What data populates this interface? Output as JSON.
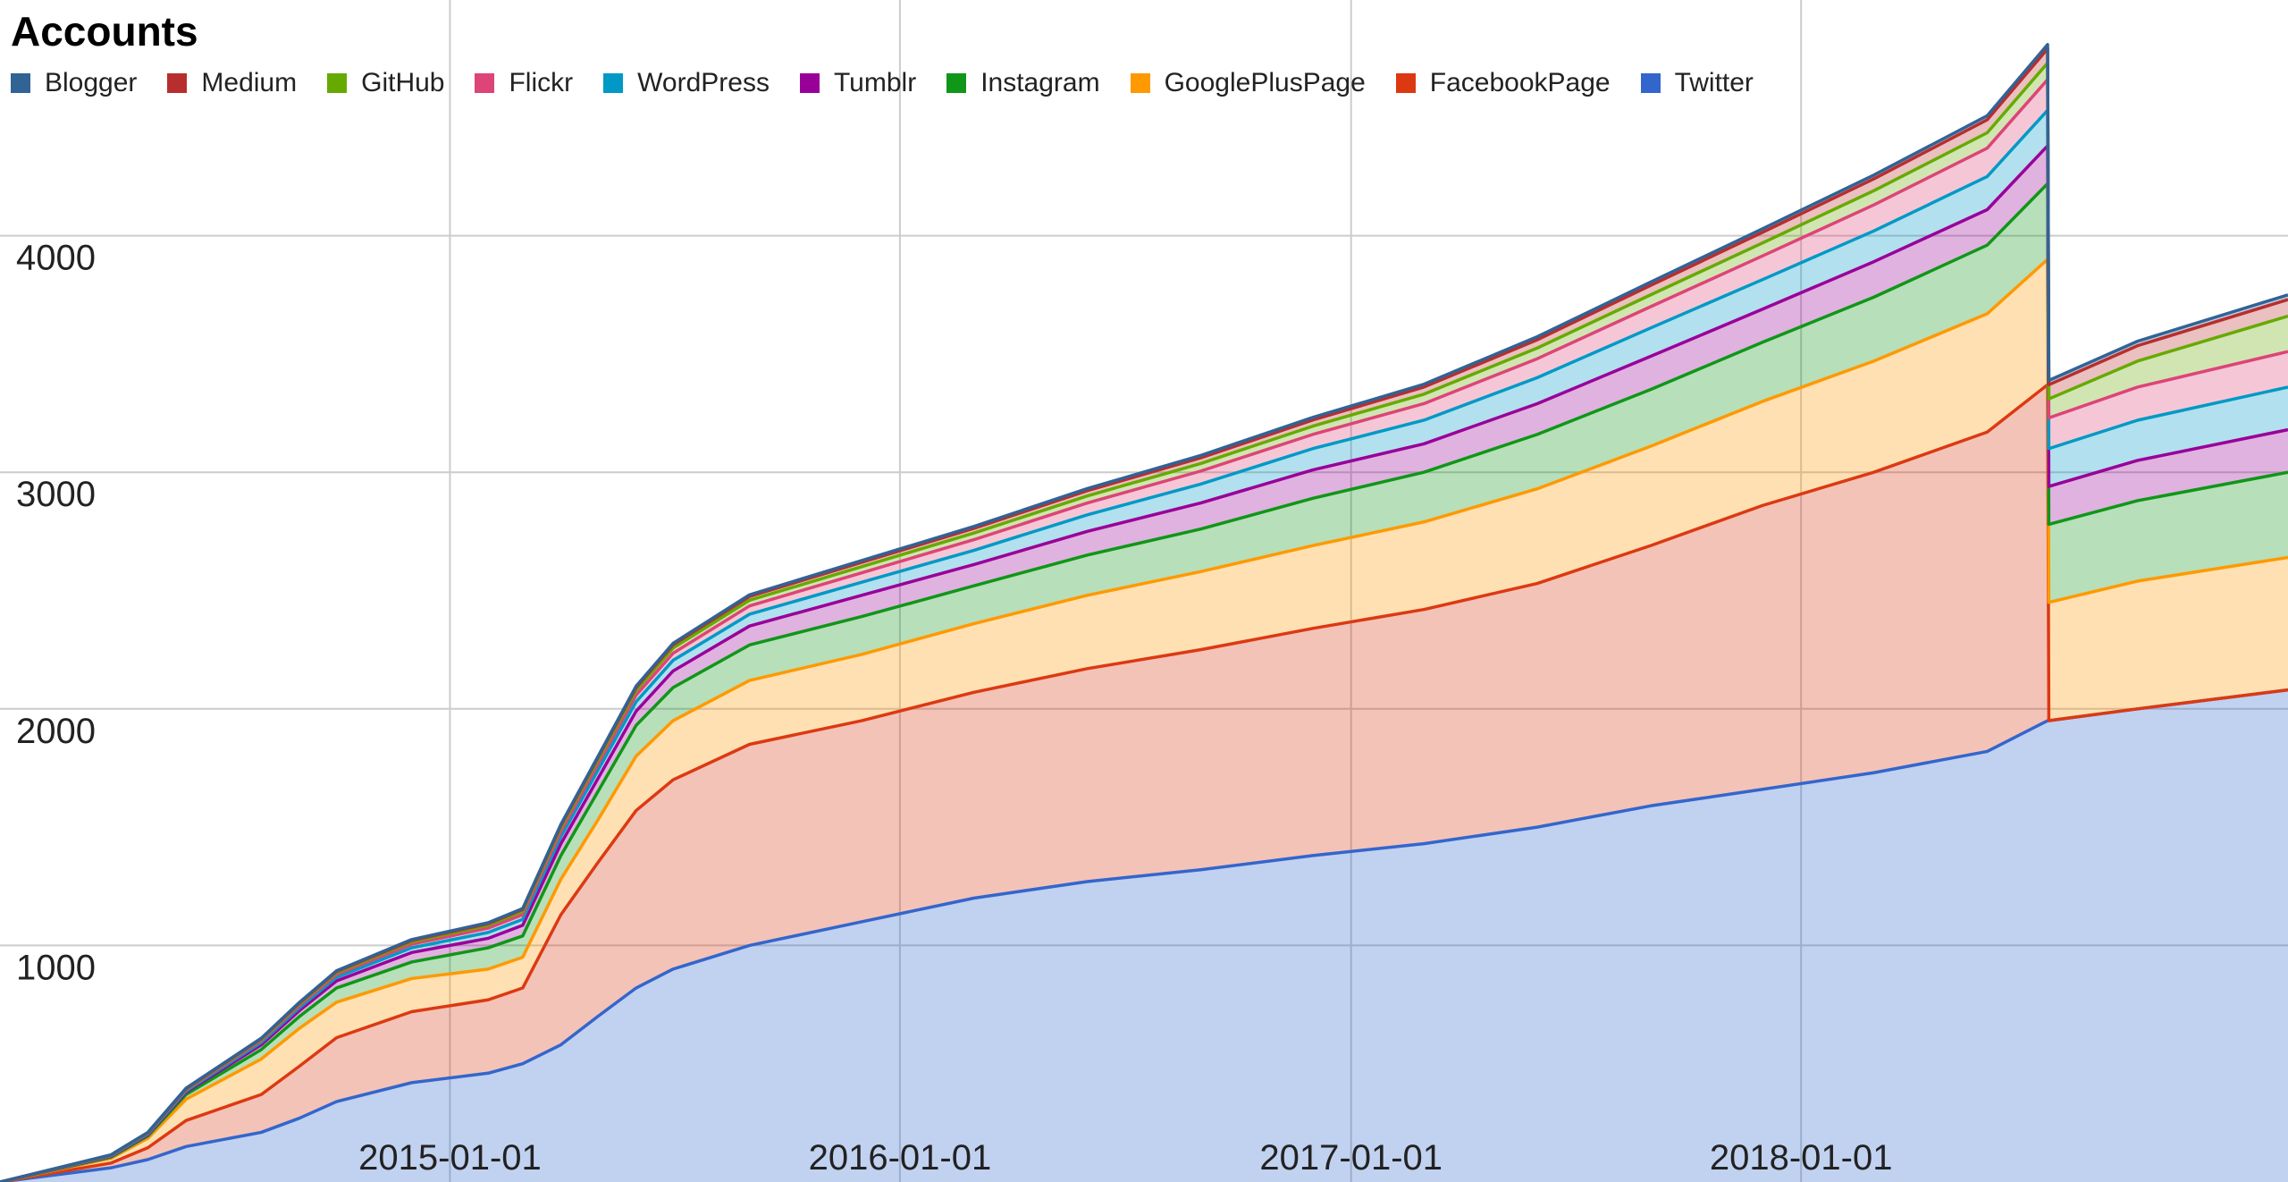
{
  "chart_data": {
    "type": "area",
    "stacked": true,
    "title": "Accounts",
    "xlabel": "",
    "ylabel": "",
    "ylim": [
      0,
      5000
    ],
    "xlim": [
      "2014-01-01",
      "2019-01-31"
    ],
    "grid": true,
    "legend_position": "top-left",
    "y_ticks": [
      1000,
      2000,
      3000,
      4000
    ],
    "y_tick_labels": [
      "1000",
      "2000",
      "3000",
      "4000"
    ],
    "x_ticks": [
      "2015-01-01",
      "2016-01-01",
      "2017-01-01",
      "2018-01-01"
    ],
    "x_tick_labels": [
      "2015-01-01",
      "2016-01-01",
      "2017-01-01",
      "2018-01-01"
    ],
    "x": [
      "2014-01-01",
      "2014-04-01",
      "2014-05-01",
      "2014-06-01",
      "2014-08-01",
      "2014-09-01",
      "2014-10-01",
      "2014-12-01",
      "2015-02-01",
      "2015-03-01",
      "2015-04-01",
      "2015-05-01",
      "2015-06-01",
      "2015-07-01",
      "2015-09-01",
      "2015-12-01",
      "2016-03-01",
      "2016-06-01",
      "2016-09-01",
      "2016-12-01",
      "2017-03-01",
      "2017-06-01",
      "2017-09-01",
      "2017-12-01",
      "2018-03-01",
      "2018-06-01",
      "2018-07-20",
      "2018-07-21",
      "2018-10-01",
      "2019-01-31"
    ],
    "series": [
      {
        "name": "Twitter",
        "color": "#3366cc",
        "values": [
          0,
          60,
          95,
          150,
          210,
          270,
          340,
          420,
          460,
          500,
          580,
          700,
          820,
          900,
          1000,
          1100,
          1200,
          1270,
          1320,
          1380,
          1430,
          1500,
          1590,
          1660,
          1730,
          1820,
          1950,
          1950,
          2000,
          2080
        ]
      },
      {
        "name": "FacebookPage",
        "color": "#dc3912",
        "values": [
          0,
          20,
          50,
          110,
          160,
          220,
          270,
          300,
          310,
          320,
          550,
          650,
          750,
          800,
          850,
          850,
          870,
          900,
          930,
          960,
          990,
          1030,
          1100,
          1200,
          1270,
          1350,
          1420,
          0,
          0,
          0
        ]
      },
      {
        "name": "GooglePlusPage",
        "color": "#ff9900",
        "values": [
          0,
          20,
          40,
          90,
          150,
          160,
          150,
          140,
          130,
          130,
          150,
          180,
          230,
          250,
          270,
          280,
          290,
          310,
          330,
          350,
          370,
          400,
          420,
          440,
          470,
          500,
          530,
          500,
          540,
          560
        ]
      },
      {
        "name": "Instagram",
        "color": "#109618",
        "values": [
          0,
          5,
          10,
          20,
          40,
          50,
          60,
          70,
          90,
          90,
          100,
          120,
          130,
          140,
          150,
          160,
          160,
          170,
          180,
          200,
          210,
          230,
          240,
          250,
          270,
          290,
          320,
          330,
          340,
          360
        ]
      },
      {
        "name": "Tumblr",
        "color": "#990099",
        "values": [
          0,
          3,
          5,
          10,
          20,
          25,
          30,
          40,
          40,
          45,
          50,
          55,
          60,
          70,
          80,
          90,
          90,
          100,
          110,
          120,
          120,
          130,
          140,
          140,
          150,
          150,
          160,
          160,
          170,
          180
        ]
      },
      {
        "name": "WordPress",
        "color": "#0099c6",
        "values": [
          0,
          2,
          3,
          5,
          10,
          12,
          15,
          20,
          25,
          25,
          30,
          35,
          40,
          45,
          50,
          55,
          60,
          70,
          80,
          90,
          100,
          110,
          120,
          125,
          130,
          140,
          150,
          160,
          170,
          180
        ]
      },
      {
        "name": "Flickr",
        "color": "#dd4477",
        "values": [
          0,
          2,
          3,
          5,
          8,
          10,
          12,
          15,
          18,
          20,
          22,
          25,
          28,
          30,
          35,
          40,
          45,
          50,
          55,
          60,
          70,
          80,
          90,
          100,
          110,
          120,
          130,
          130,
          140,
          150
        ]
      },
      {
        "name": "GitHub",
        "color": "#66aa00",
        "values": [
          0,
          1,
          2,
          3,
          5,
          6,
          8,
          10,
          12,
          14,
          16,
          18,
          20,
          22,
          24,
          26,
          28,
          30,
          32,
          35,
          40,
          45,
          50,
          55,
          60,
          65,
          70,
          80,
          110,
          150
        ]
      },
      {
        "name": "Medium",
        "color": "#b82e2e",
        "values": [
          0,
          1,
          1,
          2,
          3,
          4,
          5,
          6,
          7,
          8,
          9,
          10,
          12,
          14,
          16,
          18,
          20,
          22,
          24,
          26,
          30,
          35,
          40,
          45,
          50,
          55,
          60,
          60,
          65,
          70
        ]
      },
      {
        "name": "Blogger",
        "color": "#316395",
        "values": [
          0,
          1,
          1,
          2,
          2,
          3,
          3,
          4,
          4,
          4,
          5,
          5,
          6,
          6,
          7,
          8,
          8,
          9,
          10,
          11,
          12,
          13,
          14,
          15,
          16,
          17,
          18,
          18,
          19,
          20
        ]
      }
    ]
  },
  "legend_order": [
    "Blogger",
    "Medium",
    "GitHub",
    "Flickr",
    "WordPress",
    "Tumblr",
    "Instagram",
    "GooglePlusPage",
    "FacebookPage",
    "Twitter"
  ]
}
